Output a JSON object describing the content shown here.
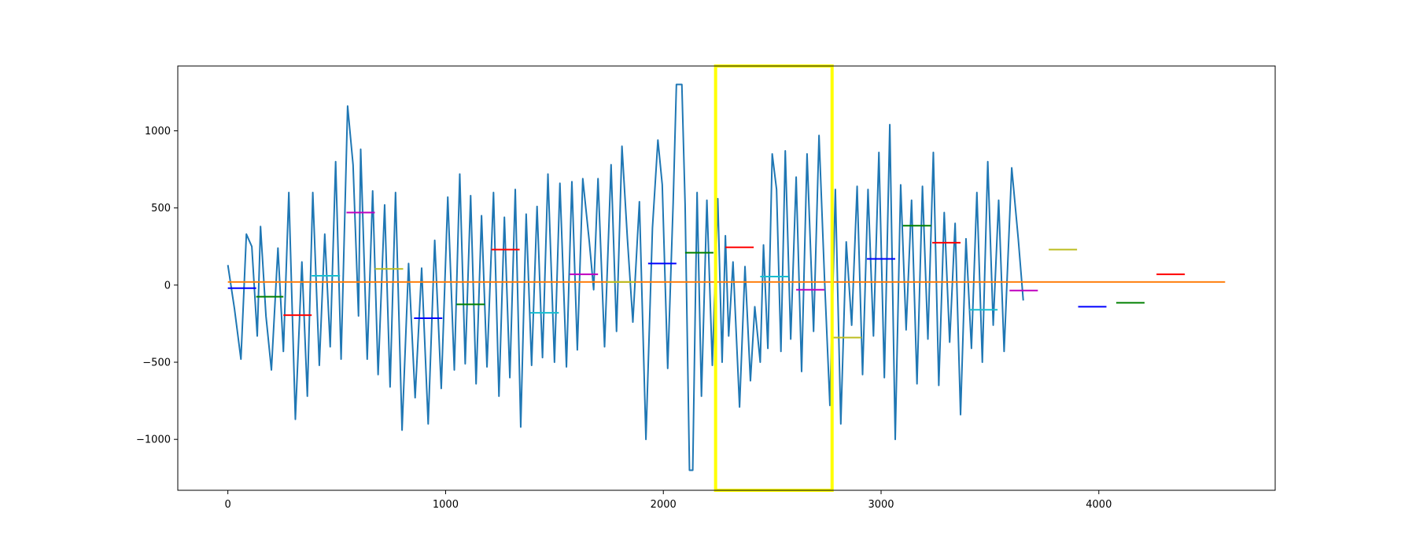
{
  "chart_data": {
    "type": "line",
    "title": "",
    "xlabel": "",
    "ylabel": "",
    "xlim": [
      -230,
      4810
    ],
    "ylim": [
      -1330,
      1420
    ],
    "x_ticks": [
      0,
      1000,
      2000,
      3000,
      4000
    ],
    "x_tick_labels": [
      "0",
      "1000",
      "2000",
      "3000",
      "4000"
    ],
    "y_ticks": [
      -1000,
      -500,
      0,
      500,
      1000
    ],
    "y_tick_labels": [
      "−1000",
      "−500",
      "0",
      "500",
      "1000"
    ],
    "grid": false,
    "legend": "none",
    "series": [
      {
        "color": "#1f77b4",
        "keypoints": [
          [
            0,
            130
          ],
          [
            30,
            -150
          ],
          [
            60,
            -480
          ],
          [
            85,
            330
          ],
          [
            110,
            250
          ],
          [
            135,
            -330
          ],
          [
            150,
            380
          ],
          [
            175,
            -200
          ],
          [
            200,
            -550
          ],
          [
            230,
            240
          ],
          [
            255,
            -430
          ],
          [
            280,
            600
          ],
          [
            310,
            -870
          ],
          [
            340,
            150
          ],
          [
            365,
            -720
          ],
          [
            390,
            600
          ],
          [
            420,
            -520
          ],
          [
            445,
            330
          ],
          [
            470,
            -400
          ],
          [
            495,
            800
          ],
          [
            520,
            -480
          ],
          [
            550,
            1160
          ],
          [
            575,
            780
          ],
          [
            600,
            -200
          ],
          [
            610,
            880
          ],
          [
            640,
            -480
          ],
          [
            665,
            610
          ],
          [
            690,
            -580
          ],
          [
            720,
            520
          ],
          [
            745,
            -660
          ],
          [
            770,
            600
          ],
          [
            800,
            -940
          ],
          [
            830,
            140
          ],
          [
            860,
            -730
          ],
          [
            890,
            110
          ],
          [
            920,
            -900
          ],
          [
            950,
            290
          ],
          [
            980,
            -670
          ],
          [
            1010,
            570
          ],
          [
            1040,
            -550
          ],
          [
            1065,
            720
          ],
          [
            1090,
            -510
          ],
          [
            1115,
            580
          ],
          [
            1140,
            -640
          ],
          [
            1165,
            450
          ],
          [
            1190,
            -530
          ],
          [
            1220,
            600
          ],
          [
            1245,
            -720
          ],
          [
            1270,
            440
          ],
          [
            1295,
            -600
          ],
          [
            1320,
            620
          ],
          [
            1345,
            -920
          ],
          [
            1370,
            460
          ],
          [
            1395,
            -520
          ],
          [
            1420,
            510
          ],
          [
            1445,
            -470
          ],
          [
            1470,
            720
          ],
          [
            1500,
            -500
          ],
          [
            1525,
            660
          ],
          [
            1555,
            -530
          ],
          [
            1580,
            670
          ],
          [
            1605,
            -420
          ],
          [
            1630,
            690
          ],
          [
            1660,
            280
          ],
          [
            1680,
            -30
          ],
          [
            1700,
            690
          ],
          [
            1730,
            -400
          ],
          [
            1760,
            780
          ],
          [
            1785,
            -300
          ],
          [
            1810,
            900
          ],
          [
            1835,
            300
          ],
          [
            1860,
            -240
          ],
          [
            1890,
            540
          ],
          [
            1920,
            -1000
          ],
          [
            1950,
            370
          ],
          [
            1975,
            940
          ],
          [
            1995,
            650
          ],
          [
            2020,
            -540
          ],
          [
            2045,
            530
          ],
          [
            2060,
            1300
          ],
          [
            2085,
            1300
          ],
          [
            2100,
            520
          ],
          [
            2120,
            -1200
          ],
          [
            2135,
            -1200
          ],
          [
            2155,
            600
          ],
          [
            2175,
            -720
          ],
          [
            2200,
            550
          ],
          [
            2225,
            -520
          ],
          [
            2250,
            560
          ],
          [
            2270,
            -500
          ],
          [
            2285,
            320
          ],
          [
            2300,
            -330
          ],
          [
            2320,
            150
          ],
          [
            2350,
            -790
          ],
          [
            2375,
            120
          ],
          [
            2400,
            -620
          ],
          [
            2420,
            -140
          ],
          [
            2445,
            -500
          ],
          [
            2460,
            260
          ],
          [
            2480,
            -410
          ],
          [
            2500,
            850
          ],
          [
            2520,
            620
          ],
          [
            2540,
            -430
          ],
          [
            2560,
            870
          ],
          [
            2585,
            -350
          ],
          [
            2610,
            700
          ],
          [
            2635,
            -560
          ],
          [
            2660,
            850
          ],
          [
            2690,
            -300
          ],
          [
            2715,
            970
          ],
          [
            2740,
            50
          ],
          [
            2765,
            -780
          ],
          [
            2790,
            620
          ],
          [
            2815,
            -900
          ],
          [
            2840,
            280
          ],
          [
            2865,
            -260
          ],
          [
            2890,
            640
          ],
          [
            2915,
            -580
          ],
          [
            2940,
            620
          ],
          [
            2965,
            -330
          ],
          [
            2990,
            860
          ],
          [
            3015,
            -600
          ],
          [
            3040,
            1040
          ],
          [
            3065,
            -1000
          ],
          [
            3090,
            650
          ],
          [
            3115,
            -290
          ],
          [
            3140,
            550
          ],
          [
            3165,
            -640
          ],
          [
            3190,
            640
          ],
          [
            3215,
            -350
          ],
          [
            3240,
            860
          ],
          [
            3265,
            -650
          ],
          [
            3290,
            470
          ],
          [
            3315,
            -370
          ],
          [
            3340,
            400
          ],
          [
            3365,
            -840
          ],
          [
            3390,
            300
          ],
          [
            3415,
            -410
          ],
          [
            3440,
            600
          ],
          [
            3465,
            -500
          ],
          [
            3490,
            800
          ],
          [
            3515,
            -260
          ],
          [
            3540,
            550
          ],
          [
            3565,
            -430
          ],
          [
            3600,
            760
          ],
          [
            3630,
            300
          ],
          [
            3653,
            -100
          ]
        ]
      }
    ],
    "mean_line": {
      "color": "#ff7f0e",
      "value": 20,
      "x_range": [
        0,
        4580
      ]
    },
    "segment_means": [
      {
        "x0": 0,
        "x1": 130,
        "y": -20,
        "color": "#0000ff"
      },
      {
        "x0": 130,
        "x1": 255,
        "y": -75,
        "color": "#008000"
      },
      {
        "x0": 255,
        "x1": 385,
        "y": -195,
        "color": "#ff0000"
      },
      {
        "x0": 385,
        "x1": 515,
        "y": 60,
        "color": "#17becf"
      },
      {
        "x0": 545,
        "x1": 675,
        "y": 470,
        "color": "#bf00bf"
      },
      {
        "x0": 675,
        "x1": 805,
        "y": 105,
        "color": "#bcbd22"
      },
      {
        "x0": 855,
        "x1": 985,
        "y": -215,
        "color": "#0000ff"
      },
      {
        "x0": 1050,
        "x1": 1180,
        "y": -125,
        "color": "#008000"
      },
      {
        "x0": 1210,
        "x1": 1340,
        "y": 230,
        "color": "#ff0000"
      },
      {
        "x0": 1390,
        "x1": 1520,
        "y": -180,
        "color": "#17becf"
      },
      {
        "x0": 1570,
        "x1": 1700,
        "y": 70,
        "color": "#bf00bf"
      },
      {
        "x0": 1740,
        "x1": 1870,
        "y": 20,
        "color": "#bcbd22"
      },
      {
        "x0": 1930,
        "x1": 2060,
        "y": 140,
        "color": "#0000ff"
      },
      {
        "x0": 2100,
        "x1": 2230,
        "y": 210,
        "color": "#008000"
      },
      {
        "x0": 2285,
        "x1": 2415,
        "y": 245,
        "color": "#ff0000"
      },
      {
        "x0": 2445,
        "x1": 2575,
        "y": 55,
        "color": "#17becf"
      },
      {
        "x0": 2610,
        "x1": 2740,
        "y": -30,
        "color": "#bf00bf"
      },
      {
        "x0": 2780,
        "x1": 2910,
        "y": -340,
        "color": "#bcbd22"
      },
      {
        "x0": 2935,
        "x1": 3065,
        "y": 170,
        "color": "#0000ff"
      },
      {
        "x0": 3100,
        "x1": 3230,
        "y": 385,
        "color": "#008000"
      },
      {
        "x0": 3235,
        "x1": 3365,
        "y": 275,
        "color": "#ff0000"
      },
      {
        "x0": 3405,
        "x1": 3535,
        "y": -160,
        "color": "#17becf"
      },
      {
        "x0": 3590,
        "x1": 3720,
        "y": -35,
        "color": "#bf00bf"
      },
      {
        "x0": 3770,
        "x1": 3900,
        "y": 230,
        "color": "#bcbd22"
      },
      {
        "x0": 3905,
        "x1": 4035,
        "y": -140,
        "color": "#0000ff"
      },
      {
        "x0": 4080,
        "x1": 4210,
        "y": -115,
        "color": "#008000"
      },
      {
        "x0": 4265,
        "x1": 4395,
        "y": 70,
        "color": "#ff0000"
      }
    ],
    "highlight_box": {
      "x0": 2240,
      "x1": 2775,
      "y0": -1330,
      "y1": 1420,
      "color": "#ffff00"
    }
  }
}
